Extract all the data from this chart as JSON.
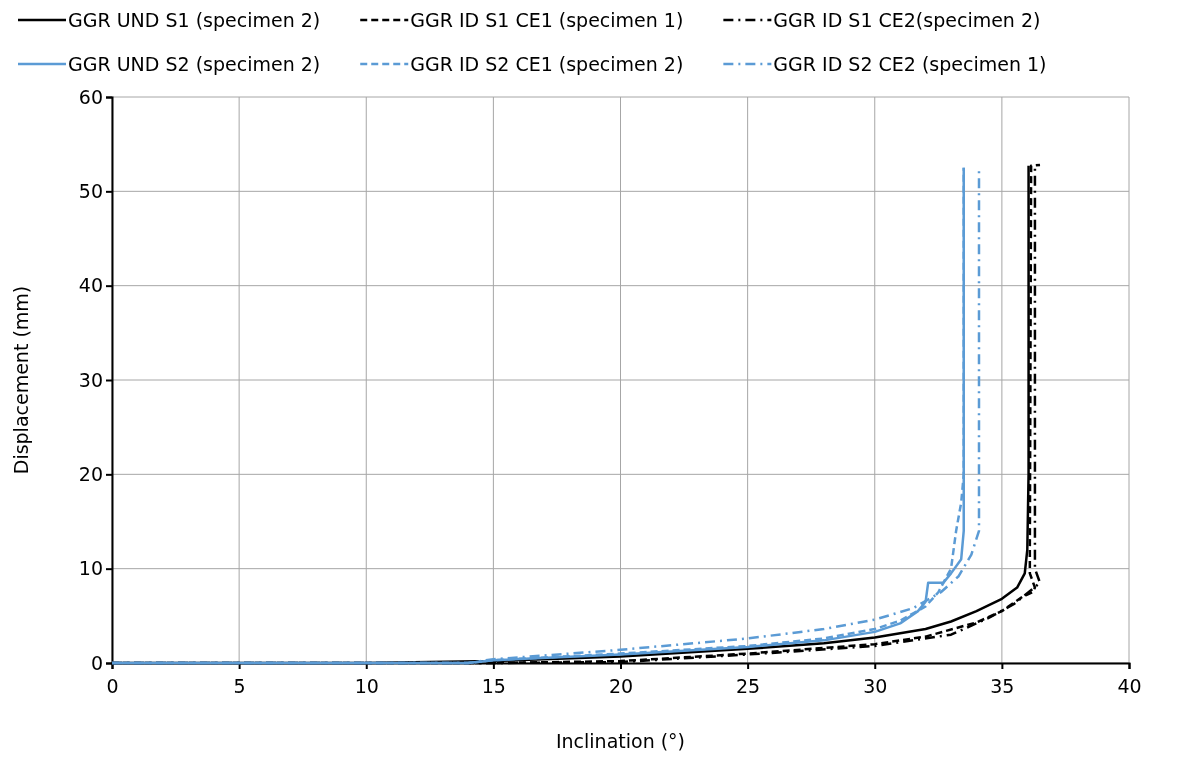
{
  "chart_data": {
    "type": "line",
    "xlabel": "Inclination (°)",
    "ylabel": "Displacement (mm)",
    "xlim": [
      0,
      40
    ],
    "ylim": [
      0,
      60
    ],
    "xticks": [
      0,
      5,
      10,
      15,
      20,
      25,
      30,
      35,
      40
    ],
    "yticks": [
      0,
      10,
      20,
      30,
      40,
      50,
      60
    ],
    "grid": true,
    "legend": "top",
    "marker": "none",
    "series": [
      {
        "name": "GGR UND S1 (specimen 2)",
        "color": "#000000",
        "line_style": "solid",
        "x": [
          0,
          10,
          15,
          20,
          25,
          28,
          30,
          32,
          33,
          34,
          35,
          35.6,
          35.9,
          36,
          36.05,
          36.05
        ],
        "values": [
          0,
          0,
          0.2,
          0.7,
          1.5,
          2.1,
          2.7,
          3.6,
          4.4,
          5.5,
          6.8,
          8,
          9.5,
          12,
          20,
          52.7
        ]
      },
      {
        "name": "GGR ID S1 CE1 (specimen 1)",
        "color": "#000000",
        "line_style": "dashed",
        "x": [
          0,
          15,
          20,
          25,
          30,
          32,
          34,
          35,
          35.8,
          36.2,
          36.3,
          36.1,
          36.1,
          36.15,
          36.5
        ],
        "values": [
          0,
          0,
          0.2,
          1,
          2,
          2.8,
          4.3,
          5.5,
          7,
          7.5,
          8,
          9.5,
          12,
          52.7,
          52.8
        ]
      },
      {
        "name": "GGR ID S1 CE2(specimen 2)",
        "color": "#000000",
        "line_style": "dashdot",
        "x": [
          0,
          15,
          20,
          25,
          30,
          33,
          34.5,
          35.5,
          36.5,
          36.3,
          36.3
        ],
        "values": [
          0,
          0,
          0.1,
          0.9,
          1.8,
          3,
          4.8,
          6.3,
          8.5,
          10,
          52.7
        ]
      },
      {
        "name": "GGR UND S2 (specimen 2)",
        "color": "#5b9bd5",
        "line_style": "solid",
        "x": [
          0,
          14,
          15,
          20,
          25,
          28,
          30,
          31,
          31.7,
          32,
          32.1,
          32.7,
          33,
          33.4,
          33.5,
          33.5,
          33.5
        ],
        "values": [
          0,
          0,
          0.3,
          0.9,
          1.7,
          2.4,
          3.3,
          4.2,
          5.5,
          6.5,
          8.5,
          8.5,
          9.5,
          11,
          14,
          20,
          52.5
        ]
      },
      {
        "name": "GGR ID S2 CE1 (specimen 2)",
        "color": "#5b9bd5",
        "line_style": "dashed",
        "x": [
          0,
          14,
          15,
          20,
          25,
          28,
          30,
          31,
          32,
          32.5,
          33,
          33.2,
          33.4,
          33.5,
          33.5
        ],
        "values": [
          0,
          0,
          0.3,
          1,
          1.8,
          2.6,
          3.6,
          4.5,
          6,
          7.5,
          10,
          14,
          17,
          20,
          52.5
        ]
      },
      {
        "name": "GGR ID S2 CE2 (specimen 1)",
        "color": "#5b9bd5",
        "line_style": "dashdot",
        "x": [
          0,
          14,
          15,
          20,
          25,
          28,
          30,
          31.5,
          32.6,
          33.3,
          33.8,
          34.1,
          34.1
        ],
        "values": [
          0,
          0,
          0.4,
          1.4,
          2.6,
          3.6,
          4.6,
          5.8,
          7.5,
          9.2,
          11.5,
          14,
          52.5
        ]
      }
    ]
  }
}
